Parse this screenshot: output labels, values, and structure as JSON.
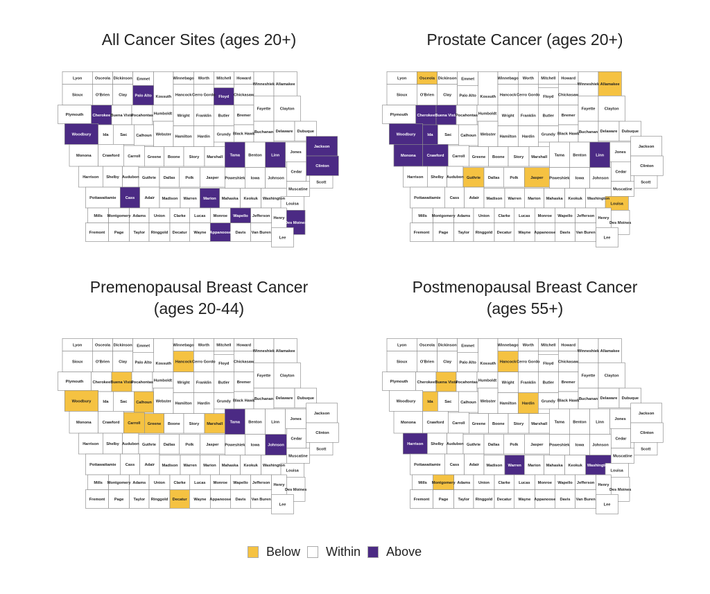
{
  "colors": {
    "below": "#f5c242",
    "within": "#ffffff",
    "above": "#4b2a84",
    "border": "#8c8c8c"
  },
  "legend": {
    "below": "Below",
    "within": "Within",
    "above": "Above"
  },
  "maps": [
    {
      "title_lines": [
        "All Cancer Sites (ages 20+)"
      ],
      "above": [
        "Palo Alto",
        "Floyd",
        "Cherokee",
        "Woodbury",
        "Tama",
        "Linn",
        "Jackson",
        "Clinton",
        "Cass",
        "Marion",
        "Wapello",
        "Appanoose",
        "Des Moines"
      ],
      "below": []
    },
    {
      "title_lines": [
        "Prostate Cancer (ages 20+)"
      ],
      "above": [
        "Cherokee",
        "Buena Vista",
        "Woodbury",
        "Ida",
        "Monona",
        "Crawford",
        "Linn"
      ],
      "below": [
        "Osceola",
        "Allamakee",
        "Guthrie",
        "Jasper",
        "Louisa"
      ]
    },
    {
      "title_lines": [
        "Premenopausal Breast Cancer",
        "(ages 20-44)"
      ],
      "above": [
        "Tama",
        "Johnson"
      ],
      "below": [
        "Hancock",
        "Buena Vista",
        "Woodbury",
        "Calhoun",
        "Carroll",
        "Greene",
        "Marshall",
        "Decatur"
      ]
    },
    {
      "title_lines": [
        "Postmenopausal Breast Cancer",
        "(ages 55+)"
      ],
      "above": [
        "Harrison",
        "Warren",
        "Washington"
      ],
      "below": [
        "Hancock",
        "Buena Vista",
        "Ida",
        "Hardin",
        "Montgomery"
      ]
    }
  ],
  "counties": [
    "Lyon",
    "Osceola",
    "Dickinson",
    "Emmet",
    "Kossuth",
    "Winnebago",
    "Worth",
    "Mitchell",
    "Howard",
    "Winneshiek",
    "Allamakee",
    "Sioux",
    "O'Brien",
    "Clay",
    "Palo Alto",
    "Hancock",
    "Cerro Gordo",
    "Floyd",
    "Chickasaw",
    "Plymouth",
    "Cherokee",
    "Buena Vista",
    "Pocahontas",
    "Humboldt",
    "Wright",
    "Franklin",
    "Butler",
    "Bremer",
    "Fayette",
    "Clayton",
    "Woodbury",
    "Ida",
    "Sac",
    "Calhoun",
    "Webster",
    "Hamilton",
    "Hardin",
    "Grundy",
    "Black Hawk",
    "Buchanan",
    "Delaware",
    "Dubuque",
    "Monona",
    "Crawford",
    "Carroll",
    "Greene",
    "Boone",
    "Story",
    "Marshall",
    "Tama",
    "Benton",
    "Linn",
    "Jones",
    "Jackson",
    "Harrison",
    "Shelby",
    "Audubon",
    "Guthrie",
    "Dallas",
    "Polk",
    "Jasper",
    "Poweshiek",
    "Iowa",
    "Johnson",
    "Cedar",
    "Clinton",
    "Scott",
    "Pottawattamie",
    "Cass",
    "Adair",
    "Madison",
    "Warren",
    "Marion",
    "Mahaska",
    "Keokuk",
    "Washington",
    "Muscatine",
    "Louisa",
    "Mills",
    "Montgomery",
    "Adams",
    "Union",
    "Clarke",
    "Lucas",
    "Monroe",
    "Wapello",
    "Jefferson",
    "Henry",
    "Des Moines",
    "Fremont",
    "Page",
    "Taylor",
    "Ringgold",
    "Decatur",
    "Wayne",
    "Appanoose",
    "Davis",
    "Van Buren",
    "Lee"
  ]
}
